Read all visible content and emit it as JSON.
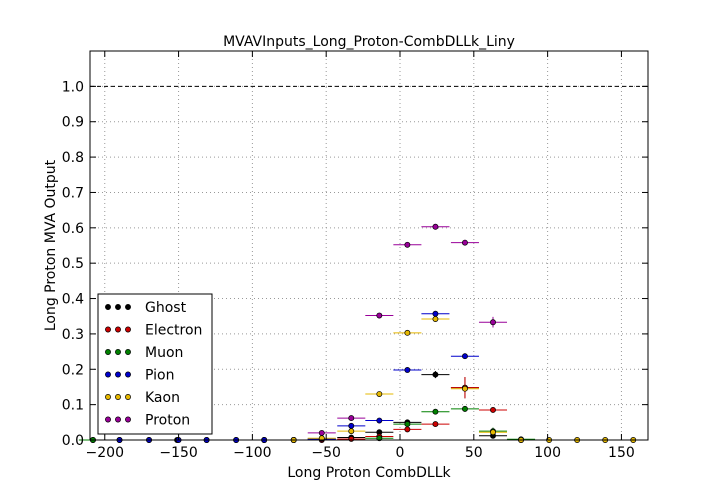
{
  "chart_data": {
    "type": "scatter",
    "title": "MVAVInputs_Long_Proton-CombDLLk_Liny",
    "xlabel": "Long Proton CombDLLk",
    "ylabel": "Long Proton MVA Output",
    "xlim": [
      -210,
      168
    ],
    "ylim": [
      0,
      1.1
    ],
    "xticks": [
      -200,
      -150,
      -100,
      -50,
      0,
      50,
      100,
      150
    ],
    "xtick_labels": [
      "−200",
      "−150",
      "−100",
      "−50",
      "0",
      "50",
      "100",
      "150"
    ],
    "yticks": [
      0.0,
      0.1,
      0.2,
      0.3,
      0.4,
      0.5,
      0.6,
      0.7,
      0.8,
      0.9,
      1.0
    ],
    "ytick_labels": [
      "0.0",
      "0.1",
      "0.2",
      "0.3",
      "0.4",
      "0.5",
      "0.6",
      "0.7",
      "0.8",
      "0.9",
      "1.0"
    ],
    "grid": true,
    "reference_line_y": 1.0,
    "legend_position": "lower-left",
    "series": [
      {
        "name": "Ghost",
        "color": "#000000",
        "xerr": 9.5,
        "x": [
          -208,
          -190,
          -170,
          -151,
          -131,
          -111,
          -92,
          -72,
          -53,
          -33,
          -14,
          5,
          24,
          44,
          63,
          82
        ],
        "y": [
          0,
          0,
          0,
          0,
          0,
          0,
          0,
          0,
          0.003,
          0.007,
          0.022,
          0.05,
          0.185,
          0.148,
          0.012,
          0
        ],
        "yerr": [
          0,
          0,
          0,
          0,
          0,
          0,
          0,
          0,
          0.003,
          0.003,
          0.005,
          0.008,
          0.01,
          0.03,
          0.006,
          0
        ]
      },
      {
        "name": "Electron",
        "color": "#cc0000",
        "xerr": 9.5,
        "x": [
          -92,
          -72,
          -53,
          -33,
          -14,
          5,
          24,
          44,
          63
        ],
        "y": [
          0,
          0,
          0,
          0.003,
          0.01,
          0.03,
          0.045,
          0.148,
          0.085
        ],
        "yerr": [
          0,
          0,
          0,
          0.002,
          0.004,
          0.006,
          0.006,
          0.03,
          0.008
        ]
      },
      {
        "name": "Muon",
        "color": "#008000",
        "xerr": 9.5,
        "x": [
          -208,
          -14,
          5,
          24,
          44,
          63,
          82
        ],
        "y": [
          0,
          0.005,
          0.045,
          0.08,
          0.088,
          0.025,
          0.002
        ],
        "yerr": [
          0,
          0.003,
          0.006,
          0.006,
          0.008,
          0.01,
          0.002
        ]
      },
      {
        "name": "Pion",
        "color": "#0000cc",
        "xerr": 9.5,
        "x": [
          -190,
          -170,
          -150,
          -131,
          -111,
          -92,
          -72,
          -53,
          -33,
          -14,
          5,
          24,
          44
        ],
        "y": [
          0,
          0,
          0,
          0,
          0,
          0,
          0,
          0.003,
          0.04,
          0.055,
          0.198,
          0.357,
          0.237
        ],
        "yerr": [
          0,
          0,
          0,
          0,
          0,
          0,
          0,
          0.002,
          0.004,
          0.004,
          0.005,
          0.006,
          0.008
        ]
      },
      {
        "name": "Kaon",
        "color": "#e6b800",
        "xerr": 9.5,
        "x": [
          -72,
          -53,
          -33,
          -14,
          5,
          24,
          44,
          63,
          82,
          101,
          120,
          139,
          158
        ],
        "y": [
          0,
          0.005,
          0.025,
          0.13,
          0.303,
          0.342,
          0.145,
          0.022,
          0,
          0,
          0,
          0,
          0
        ],
        "yerr": [
          0,
          0.003,
          0.003,
          0.005,
          0.005,
          0.005,
          0.008,
          0.005,
          0,
          0,
          0,
          0,
          0
        ]
      },
      {
        "name": "Proton",
        "color": "#990099",
        "xerr": 9.5,
        "x": [
          -53,
          -33,
          -14,
          5,
          24,
          44,
          63
        ],
        "y": [
          0.02,
          0.062,
          0.352,
          0.552,
          0.603,
          0.558,
          0.333
        ],
        "yerr": [
          0.004,
          0.006,
          0.006,
          0.006,
          0.006,
          0.008,
          0.015
        ]
      }
    ]
  }
}
